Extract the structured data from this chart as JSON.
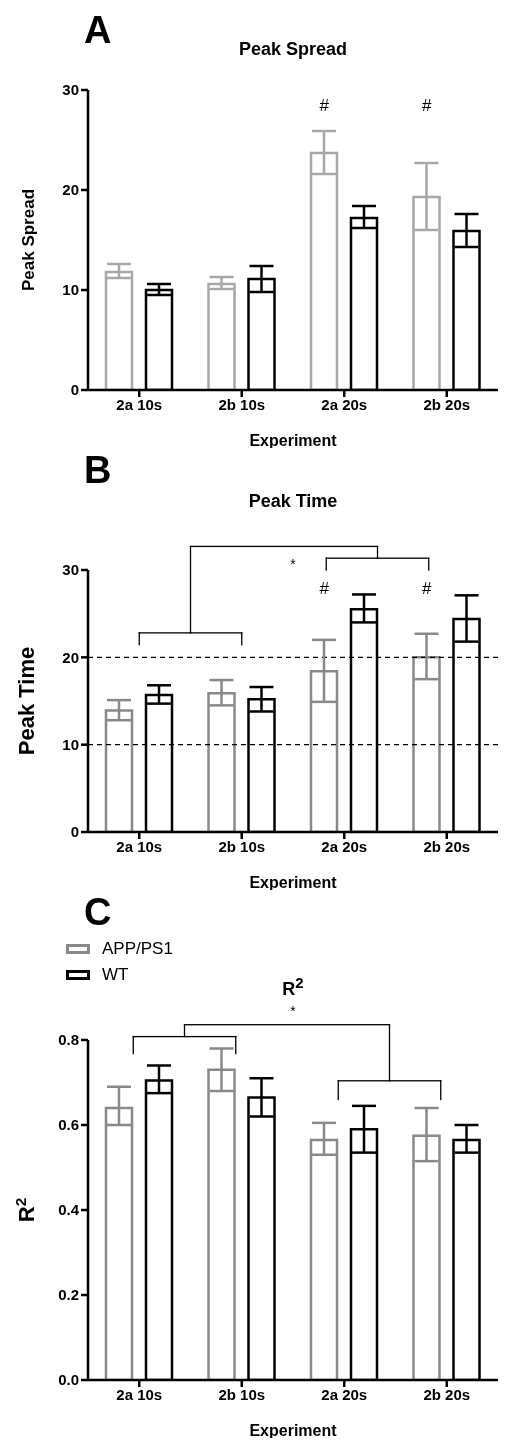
{
  "chart_data": [
    {
      "type": "bar",
      "title": "Peak Spread",
      "xlabel": "Experiment",
      "ylabel": "Peak Spread",
      "categories": [
        "2a 10s",
        "2b 10s",
        "2a 20s",
        "2b 20s"
      ],
      "series": [
        {
          "color": "#a8a8a8",
          "values": [
            11.8,
            10.6,
            23.7,
            19.3
          ],
          "errors": [
            [
              11.2,
              12.6
            ],
            [
              10.1,
              11.3
            ],
            [
              21.6,
              25.9
            ],
            [
              16.0,
              22.7
            ]
          ]
        },
        {
          "color": "#000000",
          "values": [
            10.0,
            11.1,
            17.2,
            15.9
          ],
          "errors": [
            [
              9.5,
              10.6
            ],
            [
              9.8,
              12.4
            ],
            [
              16.2,
              18.4
            ],
            [
              14.3,
              17.6
            ]
          ]
        }
      ],
      "ylim": [
        0,
        30
      ],
      "yticks": [
        0,
        10,
        20,
        30
      ],
      "annotations": [
        "A",
        "#",
        "#"
      ]
    },
    {
      "type": "bar",
      "title": "Peak Time",
      "xlabel": "Experiment",
      "ylabel": "Peak Time",
      "categories": [
        "2a 10s",
        "2b 10s",
        "2a 20s",
        "2b 20s"
      ],
      "series": [
        {
          "color": "#898989",
          "values": [
            13.9,
            15.9,
            18.4,
            20.0
          ],
          "errors": [
            [
              12.8,
              15.1
            ],
            [
              14.5,
              17.4
            ],
            [
              14.9,
              22.0
            ],
            [
              17.5,
              22.7
            ]
          ]
        },
        {
          "color": "#000000",
          "values": [
            15.7,
            15.2,
            25.5,
            24.4
          ],
          "errors": [
            [
              14.7,
              16.8
            ],
            [
              13.8,
              16.6
            ],
            [
              24.0,
              27.2
            ],
            [
              21.8,
              27.1
            ]
          ]
        }
      ],
      "ylim": [
        0,
        30
      ],
      "yticks": [
        0,
        10,
        20,
        30
      ],
      "ref_lines": [
        {
          "axis": "y",
          "value": 10,
          "color": "#000000",
          "line_style": "dashed"
        },
        {
          "axis": "y",
          "value": 20,
          "color": "#000000",
          "line_style": "dashed"
        }
      ],
      "annotations": [
        "B",
        "*",
        "#",
        "#"
      ]
    },
    {
      "type": "bar",
      "title": "R$^{2}$",
      "xlabel": "Experiment",
      "ylabel": "R$^{2}$",
      "categories": [
        "2a 10s",
        "2b 10s",
        "2a 20s",
        "2b 20s"
      ],
      "series": [
        {
          "name": "APP/PS1",
          "color": "#898989",
          "values": [
            0.64,
            0.73,
            0.565,
            0.575
          ],
          "errors": [
            [
              0.6,
              0.69
            ],
            [
              0.68,
              0.78
            ],
            [
              0.53,
              0.605
            ],
            [
              0.515,
              0.64
            ]
          ]
        },
        {
          "name": "WT",
          "color": "#000000",
          "values": [
            0.705,
            0.665,
            0.59,
            0.565
          ],
          "errors": [
            [
              0.675,
              0.74
            ],
            [
              0.62,
              0.71
            ],
            [
              0.535,
              0.645
            ],
            [
              0.535,
              0.6
            ]
          ]
        }
      ],
      "ylim": [
        0,
        0.8
      ],
      "yticks": [
        {
          "value": 0,
          "label": "0.0"
        },
        0.2,
        0.4,
        0.6,
        0.8
      ],
      "legend": "top left",
      "annotations": [
        "C",
        "*"
      ]
    }
  ]
}
